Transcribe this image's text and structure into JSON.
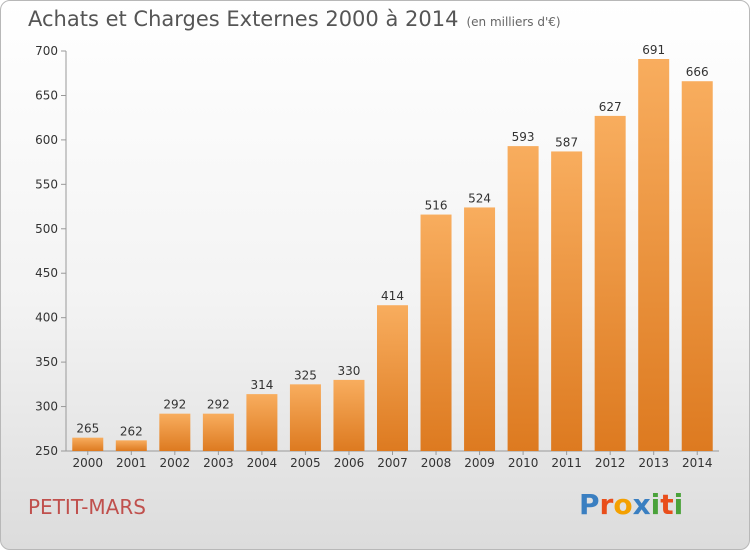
{
  "title": "Achats et Charges Externes 2000 à 2014",
  "unit": "(en milliers d'€)",
  "commune": "PETIT-MARS",
  "logo": {
    "text": "Proxiti",
    "letters": [
      {
        "ch": "P",
        "color": "#3a7fc1"
      },
      {
        "ch": "r",
        "color": "#e94e1b"
      },
      {
        "ch": "o",
        "color": "#f4a000"
      },
      {
        "ch": "x",
        "color": "#3a7fc1"
      },
      {
        "ch": "i",
        "color": "#4aa23a"
      },
      {
        "ch": "t",
        "color": "#e94e1b"
      },
      {
        "ch": "i",
        "color": "#4aa23a"
      }
    ]
  },
  "chart_data": {
    "type": "bar",
    "categories": [
      "2000",
      "2001",
      "2002",
      "2003",
      "2004",
      "2005",
      "2006",
      "2007",
      "2008",
      "2009",
      "2010",
      "2011",
      "2012",
      "2013",
      "2014"
    ],
    "values": [
      265,
      262,
      292,
      292,
      314,
      325,
      330,
      414,
      516,
      524,
      593,
      587,
      627,
      691,
      666
    ],
    "ylim": [
      250,
      700
    ],
    "yticks": [
      250,
      300,
      350,
      400,
      450,
      500,
      550,
      600,
      650,
      700
    ],
    "grid": false,
    "bar_color_top": "#f8ad5e",
    "bar_color_bottom": "#dd7a20"
  }
}
